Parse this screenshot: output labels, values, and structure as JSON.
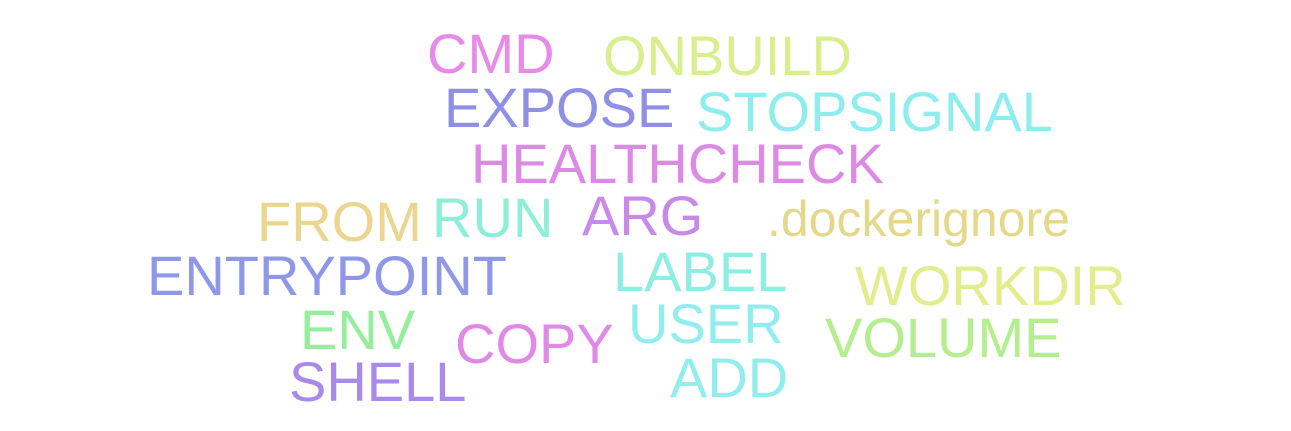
{
  "words": {
    "cmd": {
      "text": "CMD",
      "color": "#e88ae8"
    },
    "onbuild": {
      "text": "ONBUILD",
      "color": "#d9ef8e"
    },
    "expose": {
      "text": "EXPOSE",
      "color": "#8f8fe6"
    },
    "stopsignal": {
      "text": "STOPSIGNAL",
      "color": "#8eeeee"
    },
    "healthcheck": {
      "text": "HEALTHCHECK",
      "color": "#dc8ae6"
    },
    "from": {
      "text": "FROM",
      "color": "#ead68e"
    },
    "run": {
      "text": "RUN",
      "color": "#8eeed8"
    },
    "arg": {
      "text": "ARG",
      "color": "#c88ae8"
    },
    "dockerignore": {
      "text": ".dockerignore",
      "color": "#e6d88a"
    },
    "entrypoint": {
      "text": "ENTRYPOINT",
      "color": "#8f98e8"
    },
    "label": {
      "text": "LABEL",
      "color": "#8eeee4"
    },
    "workdir": {
      "text": "WORKDIR",
      "color": "#e2ee8e"
    },
    "env": {
      "text": "ENV",
      "color": "#94ee9c"
    },
    "user": {
      "text": "USER",
      "color": "#92eeee"
    },
    "volume": {
      "text": "VOLUME",
      "color": "#b4ee8e"
    },
    "copy": {
      "text": "COPY",
      "color": "#e08ae8"
    },
    "shell": {
      "text": "SHELL",
      "color": "#a88ae8"
    },
    "add": {
      "text": "ADD",
      "color": "#92eeec"
    }
  }
}
